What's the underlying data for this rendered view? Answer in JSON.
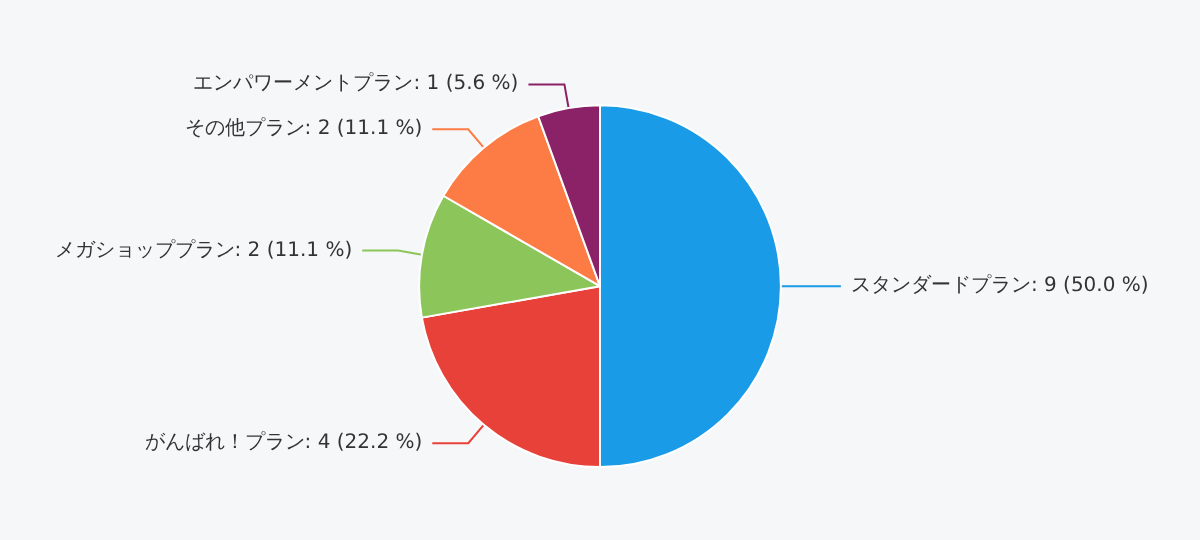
{
  "chart_data": {
    "type": "pie",
    "categories": [
      "スタンダードプラン",
      "がんばれ！プラン",
      "メガショッププラン",
      "その他プラン",
      "エンパワーメントプラン"
    ],
    "values": [
      9,
      4,
      2,
      2,
      1
    ],
    "value_labels": [
      "9 (50.0 %)",
      "4 (22.2 %)",
      "2 (11.1 %)",
      "2 (11.1 %)",
      "1 (5.6 %)"
    ],
    "colors": [
      "#1a9be8",
      "#e8413a",
      "#8cc55a",
      "#fd7b45",
      "#8b2166"
    ],
    "legend": false
  }
}
